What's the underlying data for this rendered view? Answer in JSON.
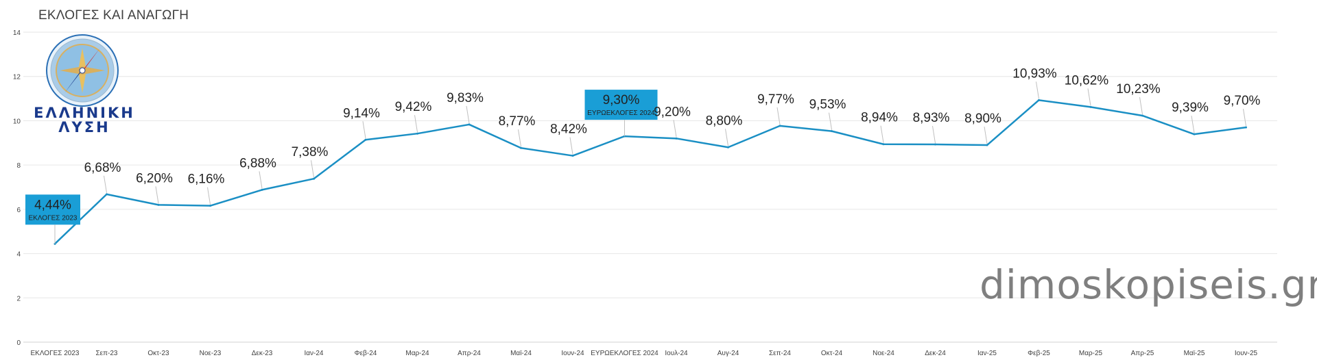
{
  "title": "ΕΚΛΟΓΕΣ ΚΑΙ ΑΝΑΓΩΓΗ",
  "watermark": "dimoskopiseis.gr",
  "logo": {
    "line1": "ΕΛΛΗΝΙΚΗ",
    "line2": "ΛΥΣΗ",
    "icon": "compass-icon"
  },
  "colors": {
    "line": "#1a8fc4",
    "highlight": "#1a9ed6",
    "grid": "#e6e6e6",
    "text": "#404040"
  },
  "chart_data": {
    "type": "line",
    "title": "ΕΚΛΟΓΕΣ ΚΑΙ ΑΝΑΓΩΓΗ",
    "xlabel": "",
    "ylabel": "",
    "ylim": [
      0,
      14
    ],
    "yticks": [
      0,
      2,
      4,
      6,
      8,
      10,
      12,
      14
    ],
    "grid": true,
    "legend": "none",
    "categories": [
      "ΕΚΛΟΓΕΣ 2023",
      "Σεπ-23",
      "Οκτ-23",
      "Νοε-23",
      "Δεκ-23",
      "Ιαν-24",
      "Φεβ-24",
      "Μαρ-24",
      "Απρ-24",
      "Μαϊ-24",
      "Ιουν-24",
      "ΕΥΡΩΕΚΛΟΓΕΣ 2024",
      "Ιουλ-24",
      "Αυγ-24",
      "Σεπ-24",
      "Οκτ-24",
      "Νοε-24",
      "Δεκ-24",
      "Ιαν-25",
      "Φεβ-25",
      "Μαρ-25",
      "Απρ-25",
      "Μαϊ-25",
      "Ιουν-25"
    ],
    "values": [
      4.44,
      6.68,
      6.2,
      6.16,
      6.88,
      7.38,
      9.14,
      9.42,
      9.83,
      8.77,
      8.42,
      9.3,
      9.2,
      8.8,
      9.77,
      9.53,
      8.94,
      8.93,
      8.9,
      10.93,
      10.62,
      10.23,
      9.39,
      9.7
    ],
    "labels": [
      "4,44%",
      "6,68%",
      "6,20%",
      "6,16%",
      "6,88%",
      "7,38%",
      "9,14%",
      "9,42%",
      "9,83%",
      "8,77%",
      "8,42%",
      "9,30%",
      "9,20%",
      "8,80%",
      "9,77%",
      "9,53%",
      "8,94%",
      "8,93%",
      "8,90%",
      "10,93%",
      "10,62%",
      "10,23%",
      "9,39%",
      "9,70%"
    ],
    "callouts": [
      {
        "index": 0,
        "value": "4,44%",
        "sub": "ΕΚΛΟΓΕΣ 2023"
      },
      {
        "index": 11,
        "value": "9,30%",
        "sub": "ΕΥΡΩΕΚΛΟΓΕΣ 2024"
      }
    ]
  }
}
